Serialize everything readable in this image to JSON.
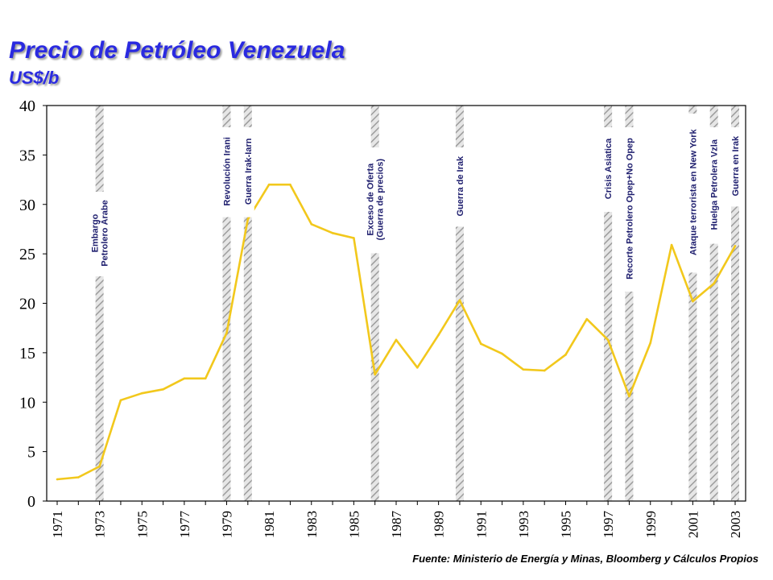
{
  "header": {
    "title": "Precio de Petróleo Venezuela",
    "subtitle": "US$/b"
  },
  "footer": {
    "source": "Fuente: Ministerio de Energía y Minas, Bloomberg y Cálculos Propios"
  },
  "colors": {
    "title": "#2a2ae0",
    "line": "#f2c81c",
    "hatch": "#a8a8a8"
  },
  "chart_data": {
    "type": "line",
    "title": "Precio de Petróleo Venezuela",
    "ylabel": "US$/b",
    "ylim": [
      0,
      40
    ],
    "xlim": [
      1971,
      2003
    ],
    "yticks": [
      0,
      5,
      10,
      15,
      20,
      25,
      30,
      35,
      40
    ],
    "xticks": [
      1971,
      1973,
      1975,
      1977,
      1979,
      1981,
      1983,
      1985,
      1987,
      1989,
      1991,
      1993,
      1995,
      1997,
      1999,
      2001,
      2003
    ],
    "grid": false,
    "series": [
      {
        "x": [
          1971,
          1972,
          1973,
          1974,
          1975,
          1976,
          1977,
          1978,
          1979,
          1980,
          1981,
          1982,
          1983,
          1984,
          1985,
          1986,
          1987,
          1988,
          1989,
          1990,
          1991,
          1992,
          1993,
          1994,
          1995,
          1996,
          1997,
          1998,
          1999,
          2000,
          2001,
          2002,
          2003
        ],
        "values": [
          2.2,
          2.4,
          3.5,
          10.2,
          10.9,
          11.3,
          12.4,
          12.4,
          17.0,
          28.5,
          32.0,
          32.0,
          28.0,
          27.1,
          26.6,
          12.8,
          16.3,
          13.5,
          16.8,
          20.3,
          15.9,
          14.9,
          13.3,
          13.2,
          14.8,
          18.4,
          16.3,
          10.6,
          16.0,
          25.9,
          20.2,
          22.0,
          25.8
        ]
      }
    ],
    "annotations": [
      {
        "x": 1973,
        "lines": [
          "Embargo",
          "Petrolero Árabe"
        ]
      },
      {
        "x": 1979,
        "lines": [
          "Revolución Irani"
        ]
      },
      {
        "x": 1980,
        "lines": [
          "Guerra Irak-Iarn"
        ]
      },
      {
        "x": 1986,
        "lines": [
          "Exceso de Oferta",
          "(Guerra de precios)"
        ]
      },
      {
        "x": 1990,
        "lines": [
          "Guerra de Irak"
        ]
      },
      {
        "x": 1997,
        "lines": [
          "Crisis Asiatica"
        ]
      },
      {
        "x": 1998,
        "lines": [
          "Recorte Petrolero Opep+No Opep"
        ]
      },
      {
        "x": 2001,
        "lines": [
          "Ataque terrorista en New York"
        ]
      },
      {
        "x": 2002,
        "lines": [
          "Huelga Petrolera Vzla"
        ]
      },
      {
        "x": 2003,
        "lines": [
          "Guerra en Irak"
        ]
      }
    ]
  }
}
